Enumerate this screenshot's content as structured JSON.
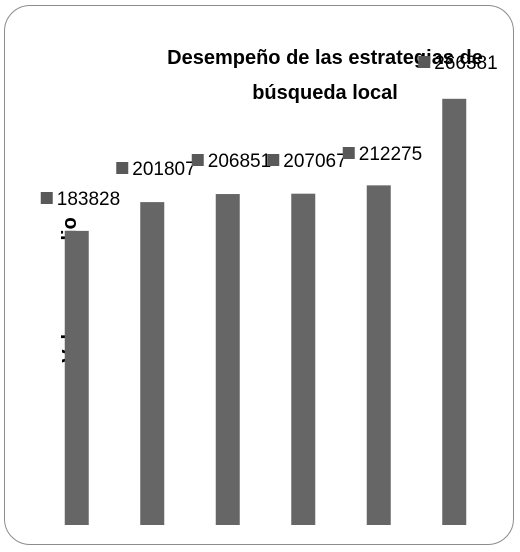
{
  "chart_data": {
    "type": "bar",
    "title_lines": [
      "Desempeño de las estrategias de",
      "búsqueda local"
    ],
    "ylabel": "Valor promedio",
    "xlabel": "",
    "categories": [
      "",
      "",
      "",
      "",
      "",
      ""
    ],
    "values": [
      183828,
      201807,
      206851,
      207067,
      212275,
      266381
    ],
    "data_labels": [
      "183828",
      "201807",
      "206851",
      "207067",
      "212275",
      "266381"
    ],
    "ylim": [
      0,
      270000
    ],
    "grid": false,
    "legend": "none",
    "bar_color": "#666666",
    "label_marker_color": "#595959"
  }
}
